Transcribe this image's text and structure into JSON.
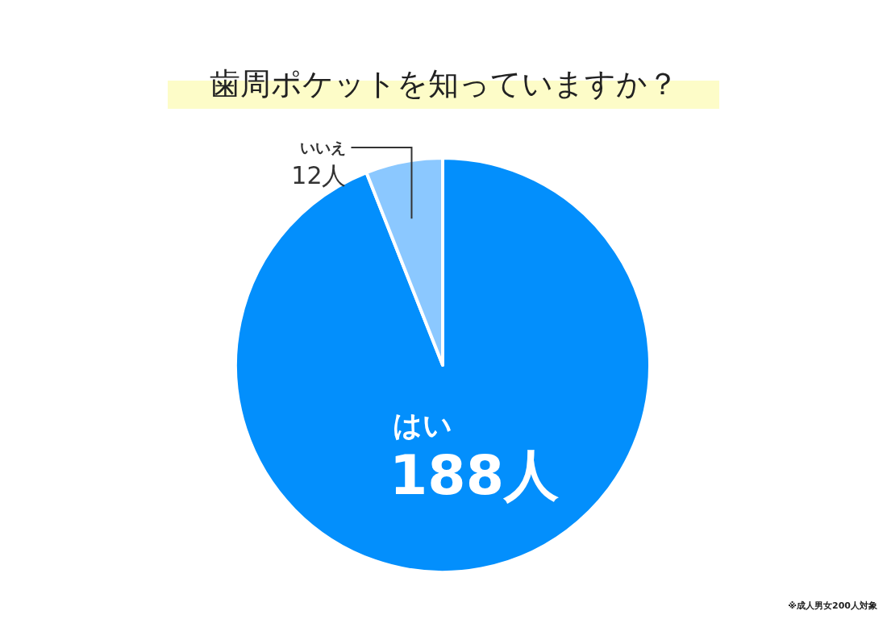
{
  "chart_data": {
    "type": "pie",
    "title": "歯周ポケットを知っていますか？",
    "categories": [
      "はい",
      "いいえ"
    ],
    "values": [
      188,
      12
    ],
    "colors": [
      "#038ffc",
      "#8bc8ff"
    ],
    "value_labels": [
      "188人",
      "12人"
    ],
    "annotations": [
      "※成人男女200人対象"
    ]
  }
}
